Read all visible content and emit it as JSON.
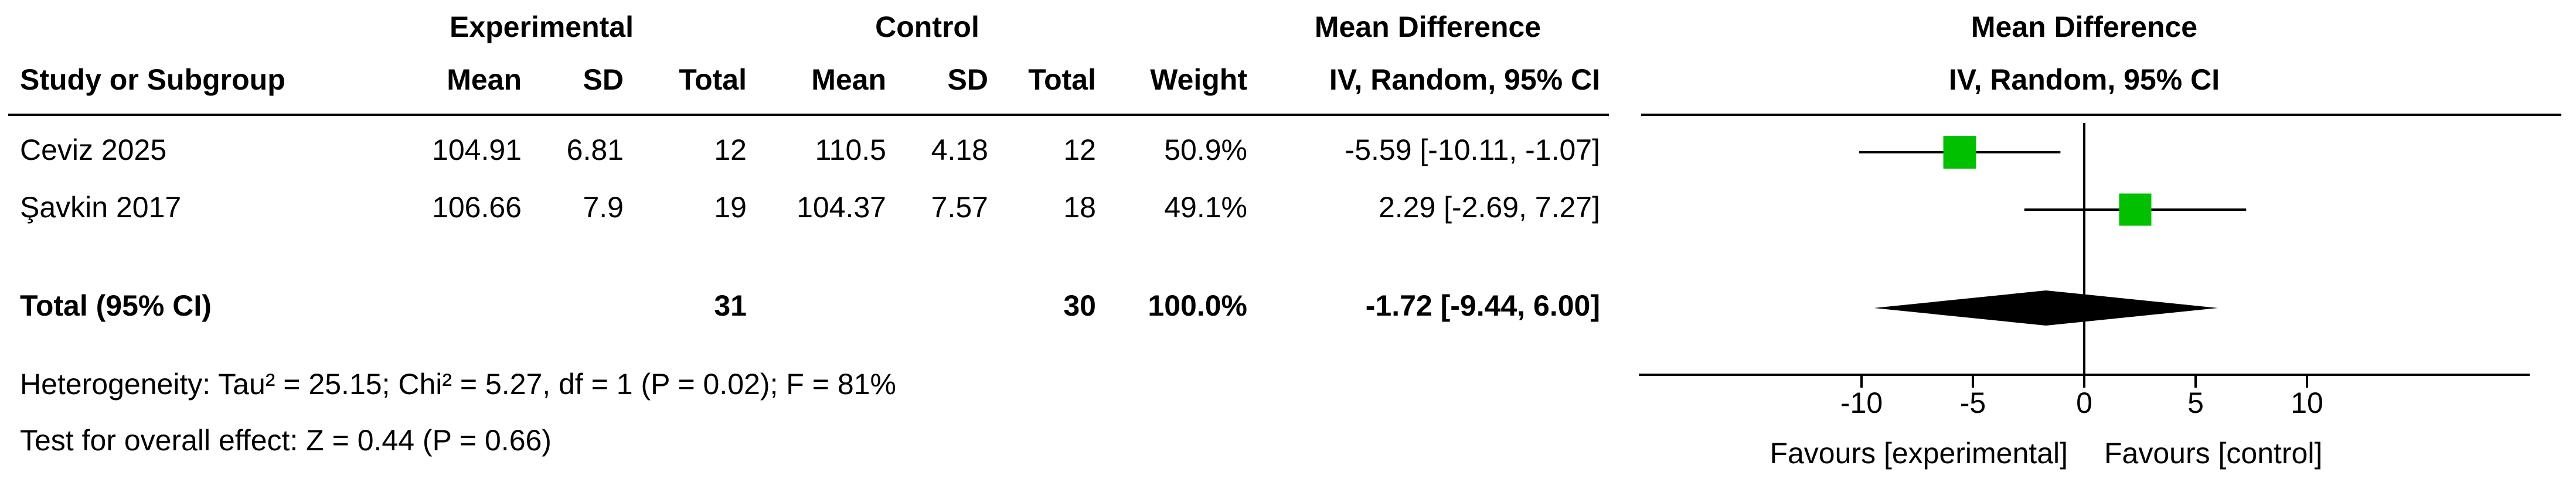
{
  "chart_data": {
    "type": "forest",
    "group_headers": {
      "experimental": "Experimental",
      "control": "Control",
      "effect": "Mean Difference",
      "plot": "Mean Difference"
    },
    "columns": [
      "Study or Subgroup",
      "Mean",
      "SD",
      "Total",
      "Mean",
      "SD",
      "Total",
      "Weight",
      "IV, Random, 95% CI"
    ],
    "plot_subtitle": "IV, Random, 95% CI",
    "studies": [
      {
        "name": "Ceviz 2025",
        "exp_mean": 104.91,
        "exp_sd": 6.81,
        "exp_total": 12,
        "ctl_mean": 110.5,
        "ctl_sd": 4.18,
        "ctl_total": 12,
        "weight": 50.9,
        "weight_label": "50.9%",
        "md": -5.59,
        "ci_low": -10.11,
        "ci_high": -1.07,
        "ci_label": "-5.59 [-10.11, -1.07]"
      },
      {
        "name": "Şavkin 2017",
        "exp_mean": 106.66,
        "exp_sd": 7.9,
        "exp_total": 19,
        "ctl_mean": 104.37,
        "ctl_sd": 7.57,
        "ctl_total": 18,
        "weight": 49.1,
        "weight_label": "49.1%",
        "md": 2.29,
        "ci_low": -2.69,
        "ci_high": 7.27,
        "ci_label": "2.29 [-2.69, 7.27]"
      }
    ],
    "total": {
      "name": "Total (95% CI)",
      "exp_total": 31,
      "ctl_total": 30,
      "weight": 100,
      "weight_label": "100.0%",
      "md": -1.72,
      "ci_low": -9.44,
      "ci_high": 6.0,
      "ci_label": "-1.72 [-9.44, 6.00]"
    },
    "heterogeneity": "Heterogeneity: Tau² = 25.15; Chi² = 5.27, df = 1 (P = 0.02); F = 81%",
    "overall_effect": "Test for overall effect: Z = 0.44 (P = 0.66)",
    "xlim": [
      -20,
      20
    ],
    "xticks": [
      -10,
      -5,
      0,
      5,
      10
    ],
    "favours_left": "Favours [experimental]",
    "favours_right": "Favours [control]",
    "marker_color": "#00c000",
    "diamond_color": "#000000"
  }
}
